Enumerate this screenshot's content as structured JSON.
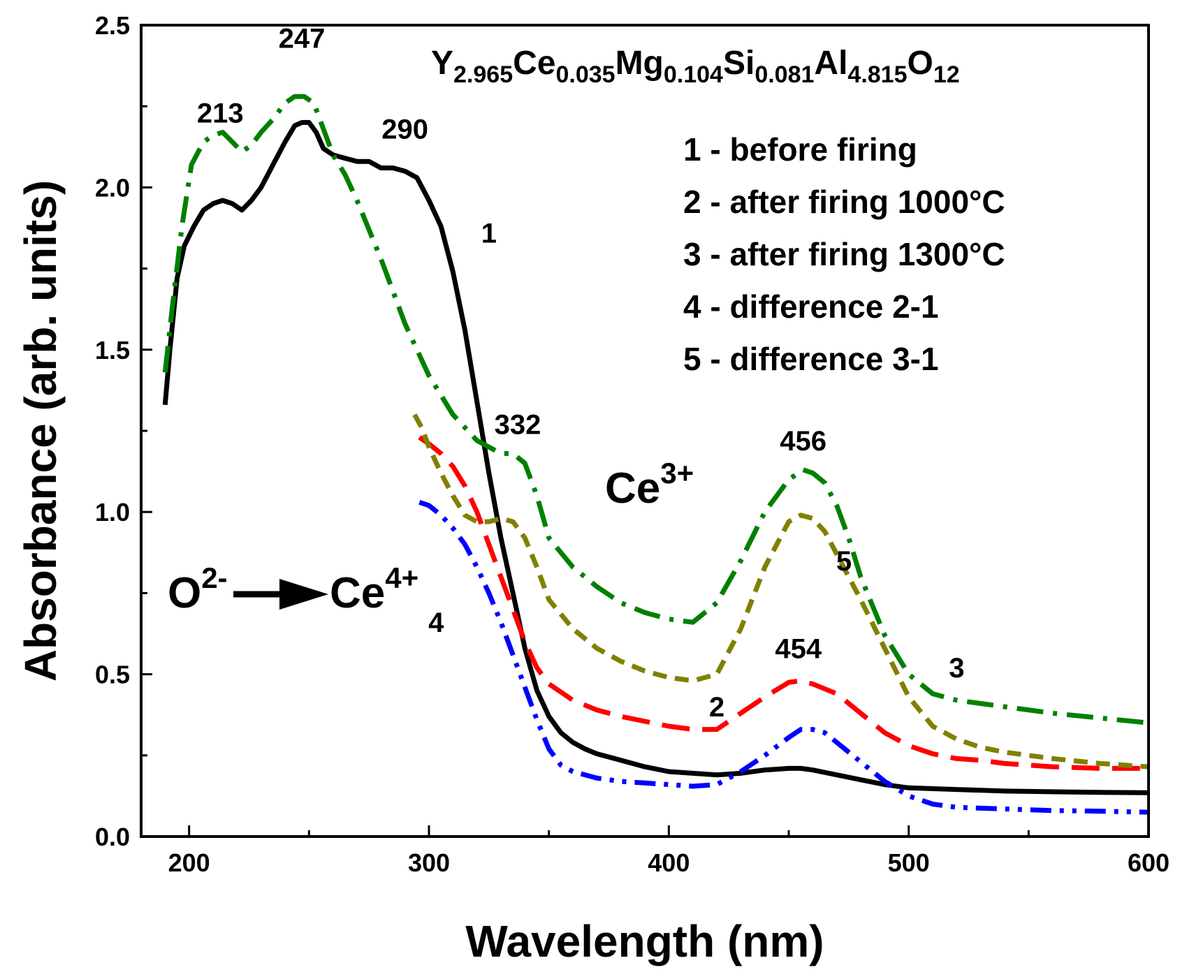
{
  "chart_data": {
    "type": "line",
    "title": "",
    "formula": {
      "parts": [
        {
          "base": "Y",
          "sub": "2.965"
        },
        {
          "base": "Ce",
          "sub": "0.035"
        },
        {
          "base": "Mg",
          "sub": "0.104"
        },
        {
          "base": "Si",
          "sub": "0.081"
        },
        {
          "base": "Al",
          "sub": "4.815"
        },
        {
          "base": "O",
          "sub": "12"
        }
      ]
    },
    "xlabel": "Wavelength (nm)",
    "ylabel": "Absorbance (arb. units)",
    "xlim": [
      180,
      600
    ],
    "ylim": [
      0,
      2.5
    ],
    "xticks": [
      200,
      300,
      400,
      500,
      600
    ],
    "yticks": [
      0.0,
      0.5,
      1.0,
      1.5,
      2.0,
      2.5
    ],
    "ytick_labels": [
      "0.0",
      "0.5",
      "1.0",
      "1.5",
      "2.0",
      "2.5"
    ],
    "grid": false,
    "legend_placement": "top-right",
    "legend": [
      "1 - before firing",
      "2 - after firing 1000°C",
      "3 - after firing 1300°C",
      "4 - difference 2-1",
      "5 - difference 3-1"
    ],
    "series": [
      {
        "id": "1",
        "color": "#000000",
        "style": "solid",
        "x": [
          190,
          192,
          195,
          198,
          202,
          206,
          210,
          214,
          218,
          222,
          226,
          230,
          235,
          240,
          244,
          247,
          250,
          253,
          256,
          260,
          265,
          270,
          275,
          280,
          285,
          290,
          295,
          300,
          305,
          310,
          315,
          320,
          325,
          330,
          335,
          340,
          345,
          350,
          355,
          360,
          365,
          370,
          380,
          390,
          400,
          410,
          420,
          430,
          440,
          450,
          455,
          460,
          470,
          480,
          490,
          500,
          520,
          540,
          560,
          580,
          600
        ],
        "y": [
          1.33,
          1.5,
          1.72,
          1.82,
          1.88,
          1.93,
          1.95,
          1.96,
          1.95,
          1.93,
          1.96,
          2.0,
          2.07,
          2.14,
          2.19,
          2.2,
          2.2,
          2.17,
          2.12,
          2.1,
          2.09,
          2.08,
          2.08,
          2.06,
          2.06,
          2.05,
          2.03,
          1.96,
          1.88,
          1.74,
          1.56,
          1.34,
          1.12,
          0.92,
          0.75,
          0.58,
          0.45,
          0.37,
          0.32,
          0.29,
          0.27,
          0.255,
          0.235,
          0.215,
          0.2,
          0.195,
          0.19,
          0.195,
          0.205,
          0.21,
          0.21,
          0.205,
          0.19,
          0.175,
          0.16,
          0.15,
          0.145,
          0.14,
          0.138,
          0.136,
          0.135
        ]
      },
      {
        "id": "2",
        "color": "#ff0000",
        "style": "dash",
        "x": [
          296,
          300,
          305,
          310,
          315,
          320,
          325,
          330,
          335,
          340,
          345,
          350,
          360,
          370,
          380,
          390,
          400,
          410,
          420,
          430,
          440,
          450,
          455,
          460,
          470,
          480,
          490,
          500,
          510,
          520,
          530,
          540,
          560,
          580,
          600
        ],
        "y": [
          1.23,
          1.21,
          1.18,
          1.14,
          1.08,
          1.0,
          0.9,
          0.8,
          0.7,
          0.6,
          0.52,
          0.47,
          0.42,
          0.39,
          0.37,
          0.355,
          0.34,
          0.33,
          0.33,
          0.38,
          0.43,
          0.475,
          0.48,
          0.47,
          0.44,
          0.38,
          0.32,
          0.28,
          0.255,
          0.24,
          0.235,
          0.225,
          0.215,
          0.21,
          0.21
        ]
      },
      {
        "id": "3",
        "color": "#008000",
        "style": "dashdot",
        "x": [
          190,
          193,
          197,
          201,
          206,
          210,
          214,
          218,
          222,
          226,
          230,
          235,
          240,
          244,
          248,
          252,
          256,
          260,
          265,
          270,
          280,
          290,
          300,
          310,
          320,
          330,
          335,
          340,
          345,
          350,
          360,
          370,
          380,
          390,
          400,
          410,
          420,
          430,
          440,
          450,
          456,
          460,
          465,
          470,
          475,
          480,
          490,
          500,
          510,
          520,
          540,
          560,
          580,
          600
        ],
        "y": [
          1.43,
          1.63,
          1.88,
          2.07,
          2.14,
          2.16,
          2.17,
          2.14,
          2.11,
          2.13,
          2.17,
          2.21,
          2.26,
          2.28,
          2.28,
          2.26,
          2.18,
          2.1,
          2.04,
          1.96,
          1.78,
          1.58,
          1.42,
          1.3,
          1.22,
          1.18,
          1.18,
          1.15,
          1.05,
          0.92,
          0.83,
          0.77,
          0.72,
          0.69,
          0.67,
          0.66,
          0.72,
          0.85,
          1.0,
          1.1,
          1.13,
          1.12,
          1.09,
          1.02,
          0.92,
          0.8,
          0.62,
          0.5,
          0.44,
          0.42,
          0.4,
          0.38,
          0.365,
          0.35
        ]
      },
      {
        "id": "4",
        "color": "#0000ff",
        "style": "dashdotdot",
        "x": [
          296,
          300,
          305,
          310,
          315,
          320,
          325,
          330,
          335,
          340,
          345,
          350,
          355,
          360,
          370,
          380,
          390,
          400,
          410,
          420,
          430,
          440,
          450,
          455,
          460,
          465,
          470,
          480,
          490,
          500,
          510,
          520,
          540,
          560,
          580,
          600
        ],
        "y": [
          1.03,
          1.02,
          0.99,
          0.95,
          0.9,
          0.83,
          0.75,
          0.66,
          0.56,
          0.46,
          0.36,
          0.27,
          0.22,
          0.2,
          0.18,
          0.17,
          0.165,
          0.16,
          0.155,
          0.16,
          0.2,
          0.25,
          0.305,
          0.33,
          0.33,
          0.32,
          0.29,
          0.23,
          0.17,
          0.125,
          0.1,
          0.09,
          0.085,
          0.08,
          0.078,
          0.075
        ]
      },
      {
        "id": "5",
        "color": "#808000",
        "style": "shortdash",
        "x": [
          294,
          297,
          300,
          305,
          310,
          315,
          320,
          325,
          330,
          335,
          340,
          345,
          350,
          360,
          370,
          380,
          390,
          400,
          410,
          420,
          430,
          440,
          450,
          455,
          460,
          465,
          470,
          480,
          490,
          500,
          510,
          520,
          530,
          540,
          560,
          580,
          600
        ],
        "y": [
          1.3,
          1.26,
          1.2,
          1.12,
          1.05,
          0.99,
          0.97,
          0.97,
          0.98,
          0.97,
          0.92,
          0.83,
          0.73,
          0.64,
          0.58,
          0.54,
          0.51,
          0.49,
          0.48,
          0.5,
          0.64,
          0.83,
          0.97,
          0.99,
          0.98,
          0.94,
          0.87,
          0.73,
          0.58,
          0.43,
          0.34,
          0.3,
          0.275,
          0.26,
          0.24,
          0.225,
          0.215
        ]
      }
    ],
    "annotations": [
      {
        "id": "peak-213",
        "text": "213",
        "x": 213,
        "y": 2.2
      },
      {
        "id": "peak-247",
        "text": "247",
        "x": 247,
        "y": 2.43
      },
      {
        "id": "peak-290",
        "text": "290",
        "x": 290,
        "y": 2.15
      },
      {
        "id": "peak-332",
        "text": "332",
        "x": 337,
        "y": 1.24
      },
      {
        "id": "peak-456",
        "text": "456",
        "x": 456,
        "y": 1.19
      },
      {
        "id": "peak-454",
        "text": "454",
        "x": 454,
        "y": 0.55
      },
      {
        "id": "curve-label-1",
        "text": "1",
        "x": 325,
        "y": 1.83
      },
      {
        "id": "curve-label-2",
        "text": "2",
        "x": 420,
        "y": 0.37
      },
      {
        "id": "curve-label-3",
        "text": "3",
        "x": 520,
        "y": 0.49
      },
      {
        "id": "curve-label-4",
        "text": "4",
        "x": 303,
        "y": 0.63
      },
      {
        "id": "curve-label-5",
        "text": "5",
        "x": 473,
        "y": 0.82
      }
    ],
    "labels": {
      "ce3": {
        "base": "Ce",
        "sup": "3+"
      },
      "transition": {
        "from_base": "O",
        "from_sup": "2-",
        "to_base": "Ce",
        "to_sup": "4+"
      }
    }
  }
}
